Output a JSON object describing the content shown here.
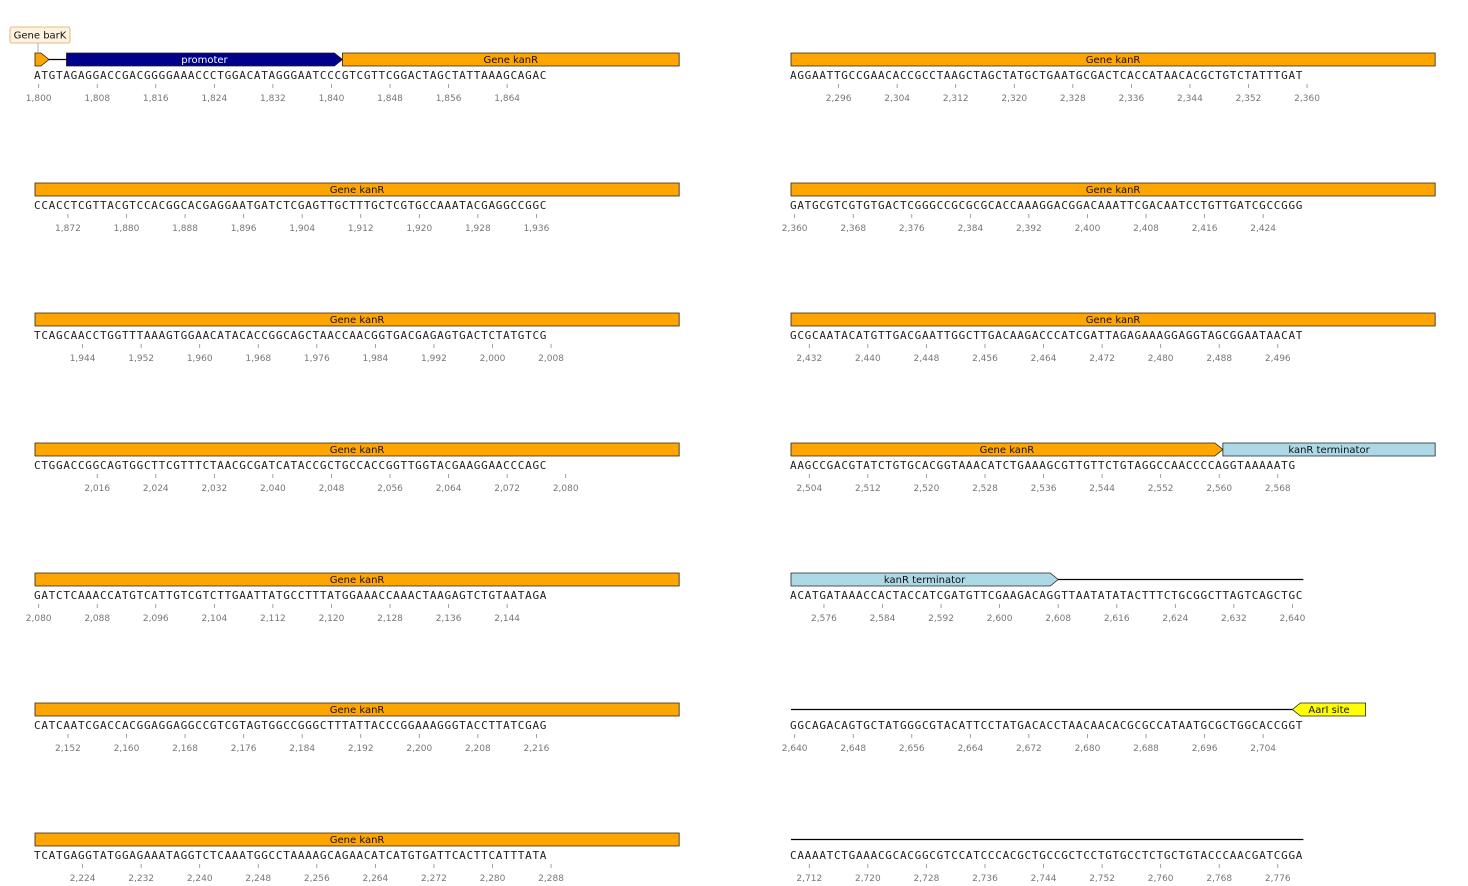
{
  "colors": {
    "gene": "#FFA500",
    "promoter": "#00008B",
    "terminator": "#ADD8E6",
    "site": "#FFFF00",
    "callout_bg": "#FFF3E0",
    "callout_border": "#D9A66B",
    "backbone": "#000000",
    "tick": "#888888"
  },
  "rows": [
    {
      "start": 1800,
      "sequence": "ATGTAGAGGACCGACGGGGAAACCCTGGACATAGGGAATCCCGTCGTTCGGACTAGCTATTAAAGCAGAC",
      "ticks": [
        "1,800",
        "1,808",
        "1,816",
        "1,824",
        "1,832",
        "1,840",
        "1,848",
        "1,856",
        "1,864"
      ],
      "features": [
        {
          "type": "gene",
          "name": "Gene barK",
          "from": 0,
          "to": 1.9,
          "arrow": "right",
          "callout": true
        },
        {
          "type": "promoter",
          "name": "promoter",
          "from": 4.3,
          "to": 42,
          "arrow": "right",
          "callout": false
        },
        {
          "type": "gene",
          "name": "Gene kanR",
          "from": 42,
          "to": 88,
          "arrow": "none",
          "callout": false
        }
      ]
    },
    {
      "start": 1868,
      "sequence": "CCACCTCGTTACGTCCACGGCACGAGGAATGATCTCGAGTTGCTTTGCTCGTGCCAAATACGAGGCCGGC",
      "ticks": [
        "1,872",
        "1,880",
        "1,888",
        "1,896",
        "1,904",
        "1,912",
        "1,920",
        "1,928",
        "1,936"
      ],
      "features": [
        {
          "type": "gene",
          "name": "Gene kanR",
          "from": 0,
          "to": 88,
          "arrow": "none",
          "callout": false
        }
      ]
    },
    {
      "start": 1938,
      "sequence": "TCAGCAACCTGGTTTAAAGTGGAACATACACCGGCAGCTAACCAACGGTGACGAGAGTGACTCTATGTCG",
      "ticks": [
        "1,944",
        "1,952",
        "1,960",
        "1,968",
        "1,976",
        "1,984",
        "1,992",
        "2,000",
        "2,008"
      ],
      "features": [
        {
          "type": "gene",
          "name": "Gene kanR",
          "from": 0,
          "to": 88,
          "arrow": "none",
          "callout": false
        }
      ]
    },
    {
      "start": 2008,
      "sequence": "CTGGACCGGCAGTGGCTTCGTTTCTAACGCGATCATACCGCTGCCACCGGTTGGTACGAAGGAACCCAGC",
      "ticks": [
        "2,016",
        "2,024",
        "2,032",
        "2,040",
        "2,048",
        "2,056",
        "2,064",
        "2,072",
        "2,080"
      ],
      "features": [
        {
          "type": "gene",
          "name": "Gene kanR",
          "from": 0,
          "to": 88,
          "arrow": "none",
          "callout": false
        }
      ]
    },
    {
      "start": 2080,
      "sequence": "GATCTCAAACCATGTCATTGTCGTCTTGAATTATGCCTTTATGGAAACCAAACTAAGAGTCTGTAATAGA",
      "ticks": [
        "2,080",
        "2,088",
        "2,096",
        "2,104",
        "2,112",
        "2,120",
        "2,128",
        "2,136",
        "2,144"
      ],
      "features": [
        {
          "type": "gene",
          "name": "Gene kanR",
          "from": 0,
          "to": 88,
          "arrow": "none",
          "callout": false
        }
      ]
    },
    {
      "start": 2148,
      "sequence": "CATCAATCGACCACGGAGGAGGCCGTCGTAGTGGCCGGGCTTTATTACCCGGAAAGGGTACCTTATCGAG",
      "ticks": [
        "2,152",
        "2,160",
        "2,168",
        "2,176",
        "2,184",
        "2,192",
        "2,200",
        "2,208",
        "2,216"
      ],
      "features": [
        {
          "type": "gene",
          "name": "Gene kanR",
          "from": 0,
          "to": 88,
          "arrow": "none",
          "callout": false
        }
      ]
    },
    {
      "start": 2218,
      "sequence": "TCATGAGGTATGGAGAAATAGGTCTCAAATGGCCTAAAAGCAGAACATCATGTGATTCACTTCATTTATA",
      "ticks": [
        "2,224",
        "2,232",
        "2,240",
        "2,248",
        "2,256",
        "2,264",
        "2,272",
        "2,280",
        "2,288"
      ],
      "features": [
        {
          "type": "gene",
          "name": "Gene kanR",
          "from": 0,
          "to": 88,
          "arrow": "none",
          "callout": false
        }
      ]
    },
    {
      "start": 2290,
      "sequence": "AGGAATTGCCGAACACCGCCTAAGCTAGCTATGCTGAATGCGACTCACCATAACACGCTGTCTATTTGAT",
      "ticks": [
        "2,296",
        "2,304",
        "2,312",
        "2,320",
        "2,328",
        "2,336",
        "2,344",
        "2,352",
        "2,360"
      ],
      "features": [
        {
          "type": "gene",
          "name": "Gene kanR",
          "from": 0,
          "to": 88,
          "arrow": "none",
          "callout": false
        }
      ]
    },
    {
      "start": 2360,
      "sequence": "GATGCGTCGTGTGACTCGGGCCGCGCGCACCAAAGGACGGACAAATTCGACAATCCTGTTGATCGCCGGG",
      "ticks": [
        "2,360",
        "2,368",
        "2,376",
        "2,384",
        "2,392",
        "2,400",
        "2,408",
        "2,416",
        "2,424"
      ],
      "features": [
        {
          "type": "gene",
          "name": "Gene kanR",
          "from": 0,
          "to": 88,
          "arrow": "none",
          "callout": false
        }
      ]
    },
    {
      "start": 2430,
      "sequence": "GCGCAATACATGTTGACGAATTGGCTTGACAAGACCCATCGATTAGAGAAAGGAGGTAGCGGAATAACAT",
      "ticks": [
        "2,432",
        "2,440",
        "2,448",
        "2,456",
        "2,464",
        "2,472",
        "2,480",
        "2,488",
        "2,496"
      ],
      "features": [
        {
          "type": "gene",
          "name": "Gene kanR",
          "from": 0,
          "to": 88,
          "arrow": "none",
          "callout": false
        }
      ]
    },
    {
      "start": 2502,
      "sequence": "AAGCCGACGTATCTGTGCACGGTAAACATCTGAAAGCGTTGTTCTGTAGGCCAACCCCAGGTAAAAATG",
      "ticks": [
        "2,504",
        "2,512",
        "2,520",
        "2,528",
        "2,536",
        "2,544",
        "2,552",
        "2,560",
        "2,568"
      ],
      "features": [
        {
          "type": "gene",
          "name": "Gene kanR",
          "from": 0,
          "to": 59,
          "arrow": "right",
          "callout": false
        },
        {
          "type": "terminator",
          "name": "kanR terminator",
          "from": 59,
          "to": 88,
          "arrow": "none",
          "callout": false
        }
      ]
    },
    {
      "start": 2572,
      "sequence": "ACATGATAAACCACTACCATCGATGTTCGAAGACAGGTTAATATATACTTTCTGCGGCTTAGTCAGCTGC",
      "ticks": [
        "2,576",
        "2,584",
        "2,592",
        "2,600",
        "2,608",
        "2,616",
        "2,624",
        "2,632",
        "2,640"
      ],
      "features": [
        {
          "type": "terminator",
          "name": "kanR terminator",
          "from": 0,
          "to": 36.5,
          "arrow": "right",
          "callout": false
        }
      ]
    },
    {
      "start": 2640,
      "sequence": "GGCAGACAGTGCTATGGGCGTACATTCCTATGACACCTAACAACACGCGCCATAATGCGCTGGCACCGGT",
      "ticks": [
        "2,640",
        "2,648",
        "2,656",
        "2,664",
        "2,672",
        "2,680",
        "2,688",
        "2,696",
        "2,704"
      ],
      "features": [
        {
          "type": "site",
          "name": "AarI site",
          "from": 68.5,
          "to": 78.5,
          "arrow": "left",
          "callout": false
        }
      ]
    },
    {
      "start": 2710,
      "sequence": "CAAAATCTGAAACGCACGGCGTCCATCCCACGCTGCCGCTCCTGTGCCTCTGCTGTACCCAACGATCGGA",
      "ticks": [
        "2,712",
        "2,720",
        "2,728",
        "2,736",
        "2,744",
        "2,752",
        "2,760",
        "2,768",
        "2,776"
      ],
      "features": []
    }
  ]
}
